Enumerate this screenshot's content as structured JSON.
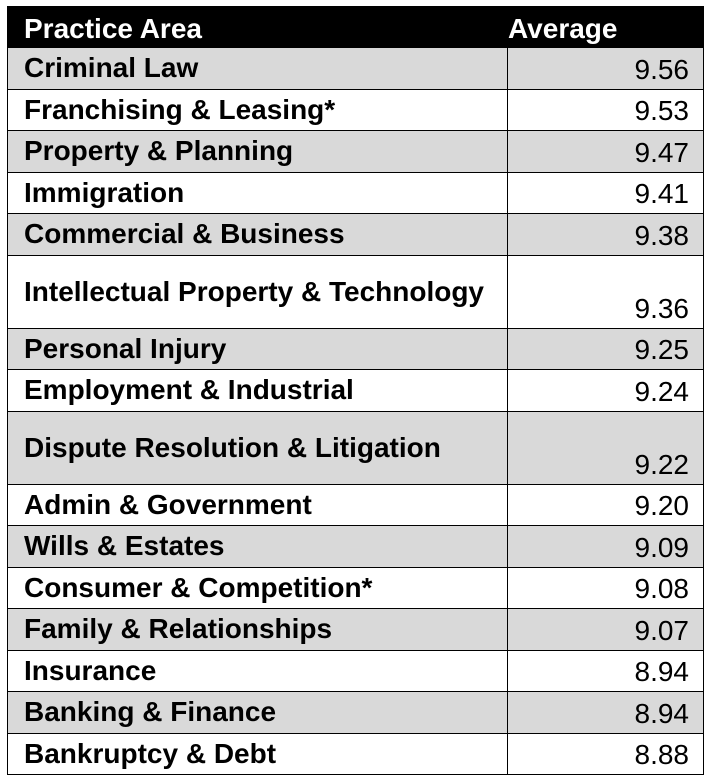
{
  "table": {
    "header": {
      "area": "Practice Area",
      "average": "Average"
    },
    "rows": [
      {
        "area": "Criminal Law",
        "average": "9.56"
      },
      {
        "area": "Franchising & Leasing*",
        "average": "9.53"
      },
      {
        "area": "Property & Planning",
        "average": "9.47"
      },
      {
        "area": "Immigration",
        "average": "9.41"
      },
      {
        "area": "Commercial & Business",
        "average": "9.38"
      },
      {
        "area": "Intellectual Property & Technology",
        "average": "9.36"
      },
      {
        "area": "Personal Injury",
        "average": "9.25"
      },
      {
        "area": "Employment & Industrial",
        "average": "9.24"
      },
      {
        "area": "Dispute Resolution & Litigation",
        "average": "9.22"
      },
      {
        "area": "Admin & Government",
        "average": "9.20"
      },
      {
        "area": "Wills & Estates",
        "average": "9.09"
      },
      {
        "area": "Consumer & Competition*",
        "average": "9.08"
      },
      {
        "area": "Family & Relationships",
        "average": "9.07"
      },
      {
        "area": "Insurance",
        "average": "8.94"
      },
      {
        "area": "Banking & Finance",
        "average": "8.94"
      },
      {
        "area": "Bankruptcy & Debt",
        "average": "8.88"
      }
    ]
  },
  "colors": {
    "header_bg": "#000000",
    "header_text": "#ffffff",
    "shaded_row": "#d9d9d9",
    "plain_row": "#ffffff"
  }
}
